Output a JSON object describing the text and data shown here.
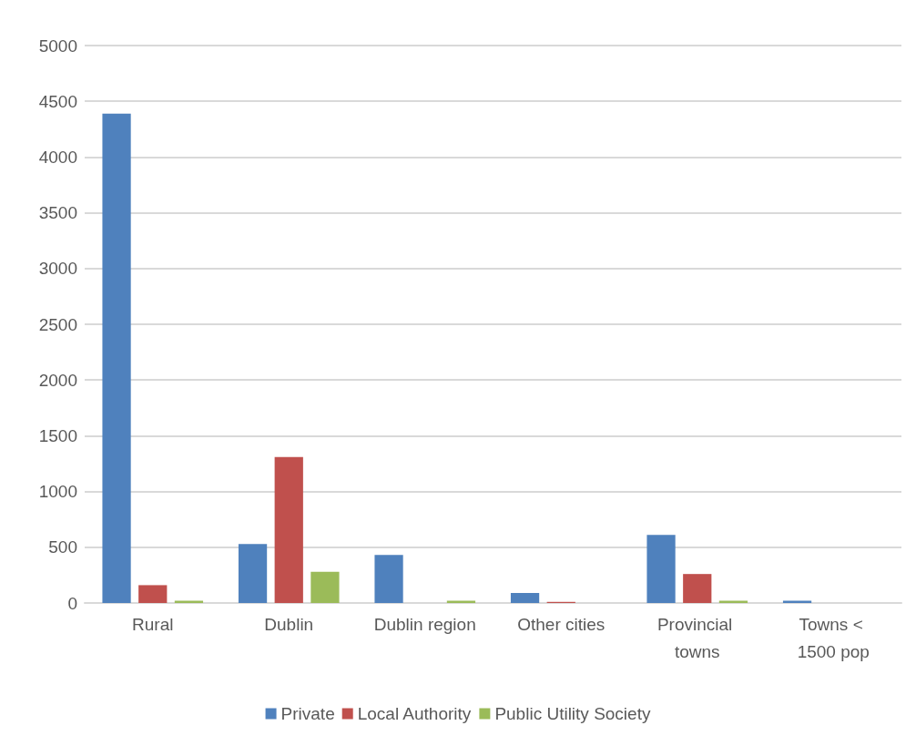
{
  "chart_data": {
    "type": "bar",
    "categories": [
      "Rural",
      "Dublin",
      "Dublin region",
      "Other cities",
      "Provincial towns",
      "Towns < 1500 pop"
    ],
    "series": [
      {
        "name": "Private",
        "color": "#4f81bd",
        "values": [
          4390,
          530,
          430,
          90,
          610,
          20
        ]
      },
      {
        "name": "Local Authority",
        "color": "#c0504d",
        "values": [
          160,
          1310,
          0,
          10,
          260,
          0
        ]
      },
      {
        "name": "Public Utility Society",
        "color": "#9bbb59",
        "values": [
          20,
          280,
          20,
          0,
          20,
          0
        ]
      }
    ],
    "ylim": [
      0,
      5000
    ],
    "yticks": [
      0,
      500,
      1000,
      1500,
      2000,
      2500,
      3000,
      3500,
      4000,
      4500,
      5000
    ],
    "grid": "y",
    "legend": "bottom"
  }
}
